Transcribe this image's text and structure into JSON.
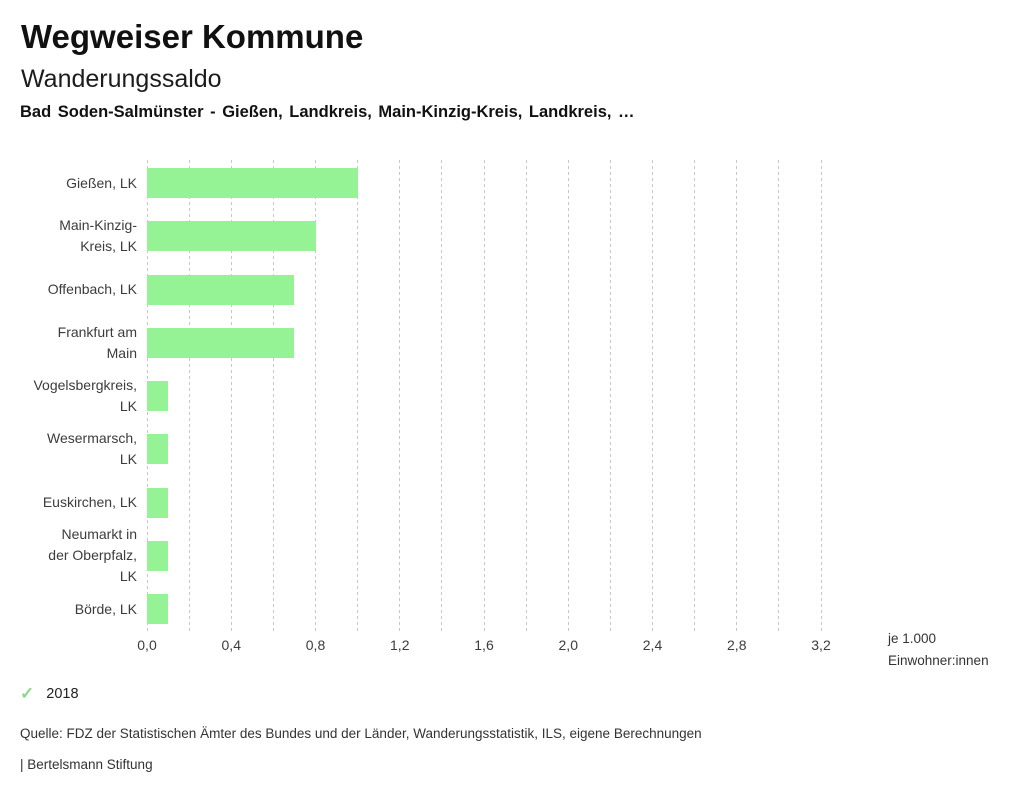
{
  "header": {
    "app_title": "Wegweiser Kommune",
    "chart_title": "Wanderungssaldo",
    "chart_subtitle": "Bad Soden-Salmünster - Gießen, Landkreis, Main-Kinzig-Kreis, Landkreis, …"
  },
  "chart_data": {
    "type": "bar",
    "orientation": "horizontal",
    "title": "Wanderungssaldo",
    "categories": [
      "Gießen, LK",
      "Main-Kinzig-Kreis, LK",
      "Offenbach, LK",
      "Frankfurt am Main",
      "Vogelsbergkreis, LK",
      "Wesermarsch, LK",
      "Euskirchen, LK",
      "Neumarkt in der Oberpfalz, LK",
      "Börde, LK"
    ],
    "category_label_lines": [
      [
        "Gießen, LK"
      ],
      [
        "Main-Kinzig-",
        "Kreis, LK"
      ],
      [
        "Offenbach, LK"
      ],
      [
        "Frankfurt am",
        "Main"
      ],
      [
        "Vogelsbergkreis,",
        "LK"
      ],
      [
        "Wesermarsch,",
        "LK"
      ],
      [
        "Euskirchen, LK"
      ],
      [
        "Neumarkt in",
        "der Oberpfalz,",
        "LK"
      ],
      [
        "Börde, LK"
      ]
    ],
    "series": [
      {
        "name": "2018",
        "values": [
          1.0,
          0.8,
          0.7,
          0.7,
          0.1,
          0.1,
          0.1,
          0.1,
          0.1
        ]
      }
    ],
    "xlabel": "je 1.000 Einwohner:innen",
    "unit_label_lines": [
      "je 1.000",
      "Einwohner:innen"
    ],
    "xlim": [
      0,
      3.2
    ],
    "gridline_step": 0.2,
    "x_ticks": [
      {
        "value": 0.0,
        "label": "0,0"
      },
      {
        "value": 0.4,
        "label": "0,4"
      },
      {
        "value": 0.8,
        "label": "0,8"
      },
      {
        "value": 1.2,
        "label": "1,2"
      },
      {
        "value": 1.6,
        "label": "1,6"
      },
      {
        "value": 2.0,
        "label": "2,0"
      },
      {
        "value": 2.4,
        "label": "2,4"
      },
      {
        "value": 2.8,
        "label": "2,8"
      },
      {
        "value": 3.2,
        "label": "3,2"
      }
    ],
    "grid": true,
    "bar_color": "#95F295",
    "gridline_color": "#c7c7c7",
    "legend_position": "bottom-left"
  },
  "legend": {
    "check_icon": "✓",
    "check_color": "#86DC86",
    "items": [
      {
        "label": "2018",
        "selected": true
      }
    ]
  },
  "footer": {
    "source": "Quelle: FDZ der Statistischen Ämter des Bundes und der Länder, Wanderungsstatistik, ILS, eigene Berechnungen",
    "branding": "| Bertelsmann Stiftung"
  }
}
